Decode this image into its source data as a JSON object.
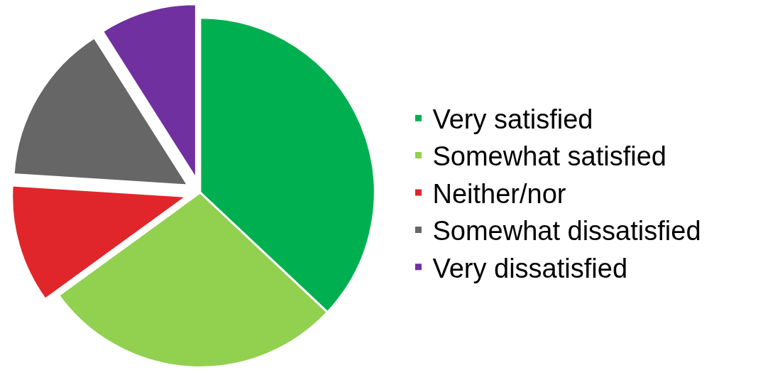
{
  "chart_data": {
    "type": "pie",
    "categories": [
      "Very satisfied",
      "Somewhat satisfied",
      "Neither/nor",
      "Somewhat dissatisfied",
      "Very dissatisfied"
    ],
    "values": [
      37,
      28,
      11,
      15,
      9
    ],
    "colors": [
      "#00b050",
      "#92d050",
      "#e0262b",
      "#666666",
      "#7030a0"
    ],
    "legend": "right"
  }
}
